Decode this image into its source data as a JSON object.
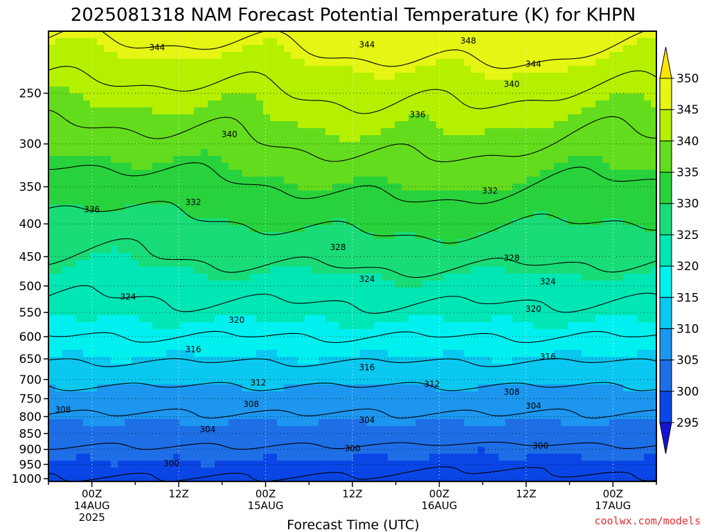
{
  "chart_data": {
    "type": "heatmap",
    "title": "2025081318 NAM Forecast Potential Temperature (K) for KHPN",
    "xlabel": "Forecast Time (UTC)",
    "ylabel": "",
    "x_ticks": [
      {
        "hour": 6,
        "lines": [
          "00Z",
          "14AUG",
          "2025"
        ]
      },
      {
        "hour": 18,
        "lines": [
          "12Z"
        ]
      },
      {
        "hour": 30,
        "lines": [
          "00Z",
          "15AUG"
        ]
      },
      {
        "hour": 42,
        "lines": [
          "12Z"
        ]
      },
      {
        "hour": 54,
        "lines": [
          "00Z",
          "16AUG"
        ]
      },
      {
        "hour": 66,
        "lines": [
          "12Z"
        ]
      },
      {
        "hour": 78,
        "lines": [
          "00Z",
          "17AUG"
        ]
      }
    ],
    "xlim": [
      0,
      84
    ],
    "y_scale": "log-pressure",
    "y_ticks": [
      250,
      300,
      350,
      400,
      450,
      500,
      550,
      600,
      650,
      700,
      750,
      800,
      850,
      900,
      950,
      1000
    ],
    "ylim": [
      1010,
      200
    ],
    "units": "K",
    "colorbar": {
      "levels": [
        295,
        300,
        305,
        310,
        315,
        320,
        325,
        330,
        335,
        340,
        345,
        350
      ],
      "colors": [
        "#1414d2",
        "#0a46e6",
        "#1e6ee6",
        "#1c96ee",
        "#0ac8f0",
        "#00f0f0",
        "#00e6b4",
        "#19dc78",
        "#28d23c",
        "#64dc1e",
        "#b4f000",
        "#e6f514",
        "#ffe600"
      ]
    },
    "contour_interval": 4,
    "contour_labels": [
      {
        "value": "348",
        "hour": 58,
        "p": 207
      },
      {
        "value": "344",
        "hour": 15,
        "p": 212
      },
      {
        "value": "344",
        "hour": 44,
        "p": 210
      },
      {
        "value": "344",
        "hour": 67,
        "p": 225
      },
      {
        "value": "340",
        "hour": 64,
        "p": 242
      },
      {
        "value": "340",
        "hour": 25,
        "p": 290
      },
      {
        "value": "336",
        "hour": 51,
        "p": 270
      },
      {
        "value": "336",
        "hour": 6,
        "p": 380
      },
      {
        "value": "332",
        "hour": 20,
        "p": 370
      },
      {
        "value": "332",
        "hour": 61,
        "p": 355
      },
      {
        "value": "328",
        "hour": 40,
        "p": 435
      },
      {
        "value": "328",
        "hour": 64,
        "p": 452
      },
      {
        "value": "324",
        "hour": 44,
        "p": 488
      },
      {
        "value": "324",
        "hour": 69,
        "p": 492
      },
      {
        "value": "324",
        "hour": 11,
        "p": 520
      },
      {
        "value": "320",
        "hour": 26,
        "p": 565
      },
      {
        "value": "320",
        "hour": 67,
        "p": 543
      },
      {
        "value": "316",
        "hour": 20,
        "p": 628
      },
      {
        "value": "316",
        "hour": 69,
        "p": 645
      },
      {
        "value": "316",
        "hour": 44,
        "p": 670
      },
      {
        "value": "312",
        "hour": 29,
        "p": 708
      },
      {
        "value": "312",
        "hour": 53,
        "p": 712
      },
      {
        "value": "308",
        "hour": 2,
        "p": 780
      },
      {
        "value": "308",
        "hour": 28,
        "p": 765
      },
      {
        "value": "308",
        "hour": 64,
        "p": 732
      },
      {
        "value": "304",
        "hour": 44,
        "p": 810
      },
      {
        "value": "304",
        "hour": 67,
        "p": 770
      },
      {
        "value": "304",
        "hour": 22,
        "p": 838
      },
      {
        "value": "300",
        "hour": 42,
        "p": 897
      },
      {
        "value": "300",
        "hour": 68,
        "p": 888
      },
      {
        "value": "300",
        "hour": 17,
        "p": 947
      }
    ],
    "profile": [
      {
        "p": 1010,
        "theta": 297.5
      },
      {
        "p": 950,
        "theta": 299.5
      },
      {
        "p": 900,
        "theta": 301.5
      },
      {
        "p": 850,
        "theta": 304
      },
      {
        "p": 800,
        "theta": 305.5
      },
      {
        "p": 750,
        "theta": 308
      },
      {
        "p": 700,
        "theta": 311
      },
      {
        "p": 650,
        "theta": 314.5
      },
      {
        "p": 600,
        "theta": 318
      },
      {
        "p": 550,
        "theta": 321
      },
      {
        "p": 500,
        "theta": 323.5
      },
      {
        "p": 450,
        "theta": 326.5
      },
      {
        "p": 400,
        "theta": 329.5
      },
      {
        "p": 350,
        "theta": 333
      },
      {
        "p": 300,
        "theta": 337
      },
      {
        "p": 250,
        "theta": 341
      },
      {
        "p": 200,
        "theta": 347
      }
    ]
  },
  "credit": "coolwx.com/models"
}
